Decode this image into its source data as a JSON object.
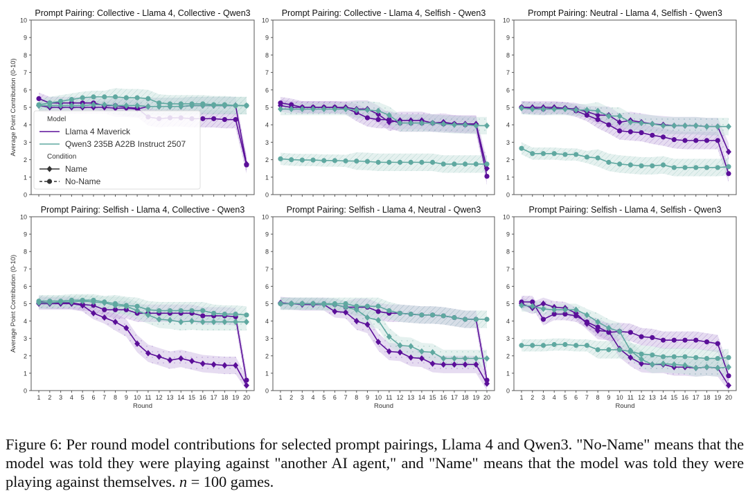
{
  "figure": {
    "caption_prefix": "Figure 6: Per round model contributions for selected prompt pairings, Llama 4 and Qwen3. \"No-Name\" means that the model was told they were playing against \"another AI agent,\" and \"Name\" means that the model was told they were playing against themselves. ",
    "caption_n": "n",
    "caption_suffix": " = 100 games."
  },
  "legend": {
    "model_title": "Model",
    "condition_title": "Condition",
    "models": [
      "Llama 4 Maverick",
      "Qwen3 235B A22B Instruct 2507"
    ],
    "conditions": [
      "Name",
      "No-Name"
    ]
  },
  "colors": {
    "llama": "#5b0f99",
    "qwen": "#5fa8a0",
    "llama_band": "#b89ad6",
    "qwen_band": "#c5e0dc"
  },
  "chart_data": [
    {
      "type": "line",
      "title": "Prompt Pairing: Collective - Llama 4, Collective - Qwen3",
      "xlabel": "",
      "ylabel": "Average Point Contribution (0-10)",
      "x": [
        1,
        2,
        3,
        4,
        5,
        6,
        7,
        8,
        9,
        10,
        11,
        12,
        13,
        14,
        15,
        16,
        17,
        18,
        19,
        20
      ],
      "ylim": [
        0,
        10
      ],
      "yticks": [
        0,
        1,
        2,
        3,
        4,
        5,
        6,
        7,
        8,
        9,
        10
      ],
      "show_xticklabels": false,
      "legend": "lower-left",
      "series": [
        {
          "name": "Llama 4 Maverick",
          "condition": "Name",
          "values": [
            5.1,
            5.0,
            5.0,
            5.0,
            5.0,
            5.0,
            5.0,
            4.95,
            4.95,
            4.9,
            5.05,
            5.05,
            5.05,
            5.05,
            5.1,
            5.1,
            5.1,
            5.1,
            5.1,
            1.75
          ]
        },
        {
          "name": "Llama 4 Maverick",
          "condition": "No-Name",
          "values": [
            5.5,
            5.25,
            5.25,
            5.25,
            5.25,
            5.25,
            5.1,
            5.1,
            5.0,
            4.95,
            4.45,
            4.35,
            4.4,
            4.4,
            4.35,
            4.35,
            4.35,
            4.3,
            4.3,
            1.7
          ]
        },
        {
          "name": "Qwen3 235B A22B Instruct 2507",
          "condition": "Name",
          "values": [
            5.1,
            5.1,
            5.1,
            5.1,
            5.1,
            5.15,
            5.15,
            5.1,
            5.1,
            5.1,
            5.05,
            5.05,
            5.05,
            5.05,
            5.1,
            5.1,
            5.1,
            5.1,
            5.1,
            5.1
          ]
        },
        {
          "name": "Qwen3 235B A22B Instruct 2507",
          "condition": "No-Name",
          "values": [
            5.15,
            5.25,
            5.35,
            5.45,
            5.55,
            5.6,
            5.6,
            5.6,
            5.55,
            5.55,
            5.5,
            5.25,
            5.2,
            5.2,
            5.2,
            5.2,
            5.15,
            5.15,
            5.1,
            5.1
          ]
        }
      ]
    },
    {
      "type": "line",
      "title": "Prompt Pairing: Collective - Llama 4, Selfish - Qwen3",
      "xlabel": "",
      "ylabel": "",
      "x": [
        1,
        2,
        3,
        4,
        5,
        6,
        7,
        8,
        9,
        10,
        11,
        12,
        13,
        14,
        15,
        16,
        17,
        18,
        19,
        20
      ],
      "ylim": [
        0,
        10
      ],
      "yticks": [
        0,
        1,
        2,
        3,
        4,
        5,
        6,
        7,
        8,
        9,
        10
      ],
      "show_xticklabels": false,
      "series": [
        {
          "name": "Llama 4 Maverick",
          "condition": "Name",
          "values": [
            5.1,
            5.0,
            5.0,
            5.0,
            5.0,
            5.0,
            5.0,
            4.9,
            4.9,
            4.6,
            4.15,
            4.25,
            4.25,
            4.25,
            4.1,
            4.15,
            4.05,
            4.05,
            4.05,
            1.5
          ]
        },
        {
          "name": "Llama 4 Maverick",
          "condition": "No-Name",
          "values": [
            5.25,
            5.15,
            5.0,
            5.0,
            5.0,
            5.0,
            4.95,
            4.7,
            4.4,
            4.3,
            4.3,
            4.1,
            4.1,
            4.1,
            4.1,
            4.05,
            4.05,
            4.0,
            4.0,
            1.05
          ]
        },
        {
          "name": "Qwen3 235B A22B Instruct 2507",
          "condition": "Name",
          "values": [
            4.9,
            4.9,
            4.9,
            4.9,
            4.9,
            4.9,
            4.9,
            4.85,
            4.85,
            4.8,
            4.55,
            4.1,
            4.1,
            4.1,
            4.1,
            4.05,
            4.0,
            4.0,
            3.95,
            3.95
          ]
        },
        {
          "name": "Qwen3 235B A22B Instruct 2507",
          "condition": "No-Name",
          "values": [
            2.05,
            2.0,
            1.98,
            1.98,
            1.95,
            1.95,
            1.93,
            1.92,
            1.9,
            1.85,
            1.85,
            1.85,
            1.85,
            1.85,
            1.85,
            1.75,
            1.75,
            1.75,
            1.75,
            1.75
          ]
        }
      ]
    },
    {
      "type": "line",
      "title": "Prompt Pairing: Neutral - Llama 4, Selfish - Qwen3",
      "xlabel": "",
      "ylabel": "",
      "x": [
        1,
        2,
        3,
        4,
        5,
        6,
        7,
        8,
        9,
        10,
        11,
        12,
        13,
        14,
        15,
        16,
        17,
        18,
        19,
        20
      ],
      "ylim": [
        0,
        10
      ],
      "yticks": [
        0,
        1,
        2,
        3,
        4,
        5,
        6,
        7,
        8,
        9,
        10
      ],
      "show_xticklabels": false,
      "series": [
        {
          "name": "Llama 4 Maverick",
          "condition": "Name",
          "values": [
            5.0,
            5.0,
            5.0,
            5.0,
            4.95,
            4.9,
            4.75,
            4.55,
            4.55,
            4.15,
            4.25,
            4.15,
            4.05,
            4.0,
            3.95,
            3.95,
            3.95,
            3.9,
            3.9,
            2.45
          ]
        },
        {
          "name": "Llama 4 Maverick",
          "condition": "No-Name",
          "values": [
            5.0,
            4.95,
            4.9,
            4.95,
            4.95,
            4.8,
            4.55,
            4.3,
            4.0,
            3.65,
            3.6,
            3.55,
            3.4,
            3.3,
            3.15,
            3.1,
            3.1,
            3.1,
            3.1,
            1.2
          ]
        },
        {
          "name": "Qwen3 235B A22B Instruct 2507",
          "condition": "Name",
          "values": [
            4.95,
            4.9,
            4.9,
            4.9,
            4.9,
            4.85,
            4.85,
            4.8,
            4.5,
            4.5,
            4.15,
            4.1,
            4.05,
            3.95,
            3.95,
            3.95,
            3.95,
            3.9,
            3.9,
            3.9
          ]
        },
        {
          "name": "Qwen3 235B A22B Instruct 2507",
          "condition": "No-Name",
          "values": [
            2.65,
            2.35,
            2.35,
            2.35,
            2.3,
            2.3,
            2.15,
            2.1,
            1.85,
            1.75,
            1.7,
            1.65,
            1.65,
            1.7,
            1.55,
            1.55,
            1.55,
            1.55,
            1.55,
            1.6
          ]
        }
      ]
    },
    {
      "type": "line",
      "title": "Prompt Pairing: Selfish - Llama 4, Collective - Qwen3",
      "xlabel": "Round",
      "ylabel": "Average Point Contribution (0-10)",
      "x": [
        1,
        2,
        3,
        4,
        5,
        6,
        7,
        8,
        9,
        10,
        11,
        12,
        13,
        14,
        15,
        16,
        17,
        18,
        19,
        20
      ],
      "ylim": [
        0,
        10
      ],
      "yticks": [
        0,
        1,
        2,
        3,
        4,
        5,
        6,
        7,
        8,
        9,
        10
      ],
      "show_xticklabels": true,
      "series": [
        {
          "name": "Llama 4 Maverick",
          "condition": "Name",
          "values": [
            5.0,
            5.0,
            5.0,
            5.0,
            4.9,
            4.45,
            4.2,
            3.95,
            3.6,
            2.7,
            2.15,
            1.95,
            1.75,
            1.85,
            1.7,
            1.55,
            1.5,
            1.45,
            1.45,
            0.3
          ]
        },
        {
          "name": "Llama 4 Maverick",
          "condition": "No-Name",
          "values": [
            5.1,
            5.05,
            5.05,
            5.05,
            4.95,
            4.9,
            4.65,
            4.65,
            4.65,
            4.45,
            4.45,
            4.45,
            4.45,
            4.45,
            4.45,
            4.3,
            4.3,
            4.3,
            4.25,
            0.6
          ]
        },
        {
          "name": "Qwen3 235B A22B Instruct 2507",
          "condition": "Name",
          "values": [
            5.05,
            5.05,
            5.1,
            5.1,
            5.15,
            5.1,
            5.05,
            4.9,
            4.85,
            4.6,
            4.35,
            4.1,
            4.05,
            3.95,
            4.0,
            3.95,
            3.95,
            3.95,
            3.95,
            3.95
          ]
        },
        {
          "name": "Qwen3 235B A22B Instruct 2507",
          "condition": "No-Name",
          "values": [
            5.15,
            5.15,
            5.15,
            5.2,
            5.2,
            5.2,
            5.1,
            5.0,
            4.9,
            4.85,
            4.65,
            4.6,
            4.6,
            4.6,
            4.6,
            4.6,
            4.45,
            4.4,
            4.4,
            4.35
          ]
        }
      ]
    },
    {
      "type": "line",
      "title": "Prompt Pairing: Selfish - Llama 4, Neutral - Qwen3",
      "xlabel": "Round",
      "ylabel": "",
      "x": [
        1,
        2,
        3,
        4,
        5,
        6,
        7,
        8,
        9,
        10,
        11,
        12,
        13,
        14,
        15,
        16,
        17,
        18,
        19,
        20
      ],
      "ylim": [
        0,
        10
      ],
      "yticks": [
        0,
        1,
        2,
        3,
        4,
        5,
        6,
        7,
        8,
        9,
        10
      ],
      "show_xticklabels": true,
      "series": [
        {
          "name": "Llama 4 Maverick",
          "condition": "Name",
          "values": [
            5.05,
            5.0,
            4.95,
            4.95,
            4.95,
            4.55,
            4.5,
            4.0,
            3.8,
            2.8,
            2.25,
            2.2,
            1.9,
            1.85,
            1.55,
            1.5,
            1.5,
            1.5,
            1.5,
            0.4
          ]
        },
        {
          "name": "Llama 4 Maverick",
          "condition": "No-Name",
          "values": [
            5.0,
            5.0,
            5.0,
            5.0,
            5.0,
            4.95,
            4.8,
            4.8,
            4.8,
            4.55,
            4.45,
            4.45,
            4.4,
            4.35,
            4.35,
            4.3,
            4.2,
            4.1,
            4.1,
            0.6
          ]
        },
        {
          "name": "Qwen3 235B A22B Instruct 2507",
          "condition": "Name",
          "values": [
            5.0,
            5.0,
            5.0,
            5.0,
            4.95,
            4.95,
            4.8,
            4.65,
            4.2,
            4.05,
            3.1,
            2.6,
            2.55,
            2.25,
            2.2,
            1.85,
            1.85,
            1.85,
            1.85,
            1.85
          ]
        },
        {
          "name": "Qwen3 235B A22B Instruct 2507",
          "condition": "No-Name",
          "values": [
            5.0,
            5.0,
            5.0,
            5.0,
            5.0,
            5.0,
            5.0,
            4.85,
            4.85,
            4.85,
            4.6,
            4.45,
            4.4,
            4.35,
            4.35,
            4.3,
            4.2,
            4.1,
            4.1,
            4.1
          ]
        }
      ]
    },
    {
      "type": "line",
      "title": "Prompt Pairing: Selfish - Llama 4, Selfish - Qwen3",
      "xlabel": "Round",
      "ylabel": "",
      "x": [
        1,
        2,
        3,
        4,
        5,
        6,
        7,
        8,
        9,
        10,
        11,
        12,
        13,
        14,
        15,
        16,
        17,
        18,
        19,
        20
      ],
      "ylim": [
        0,
        10
      ],
      "yticks": [
        0,
        1,
        2,
        3,
        4,
        5,
        6,
        7,
        8,
        9,
        10
      ],
      "show_xticklabels": true,
      "series": [
        {
          "name": "Llama 4 Maverick",
          "condition": "Name",
          "values": [
            5.0,
            4.75,
            5.0,
            4.8,
            4.75,
            4.45,
            3.85,
            3.45,
            3.4,
            2.4,
            1.9,
            1.55,
            1.5,
            1.5,
            1.35,
            1.35,
            1.3,
            1.35,
            1.3,
            0.3
          ]
        },
        {
          "name": "Llama 4 Maverick",
          "condition": "No-Name",
          "values": [
            5.1,
            5.1,
            4.1,
            4.4,
            4.4,
            4.3,
            3.95,
            3.65,
            3.35,
            3.4,
            3.35,
            3.1,
            3.05,
            2.9,
            2.9,
            2.9,
            2.9,
            2.8,
            2.7,
            0.85
          ]
        },
        {
          "name": "Qwen3 235B A22B Instruct 2507",
          "condition": "Name",
          "values": [
            4.9,
            4.85,
            4.7,
            4.65,
            4.65,
            4.65,
            4.35,
            3.95,
            3.6,
            3.4,
            2.3,
            1.8,
            1.5,
            1.55,
            1.5,
            1.45,
            1.3,
            1.35,
            1.3,
            1.35
          ]
        },
        {
          "name": "Qwen3 235B A22B Instruct 2507",
          "condition": "No-Name",
          "values": [
            2.6,
            2.6,
            2.6,
            2.65,
            2.65,
            2.6,
            2.6,
            2.35,
            2.35,
            2.35,
            2.25,
            2.1,
            2.05,
            1.95,
            1.95,
            1.95,
            1.9,
            1.85,
            1.85,
            1.9
          ]
        }
      ]
    }
  ]
}
